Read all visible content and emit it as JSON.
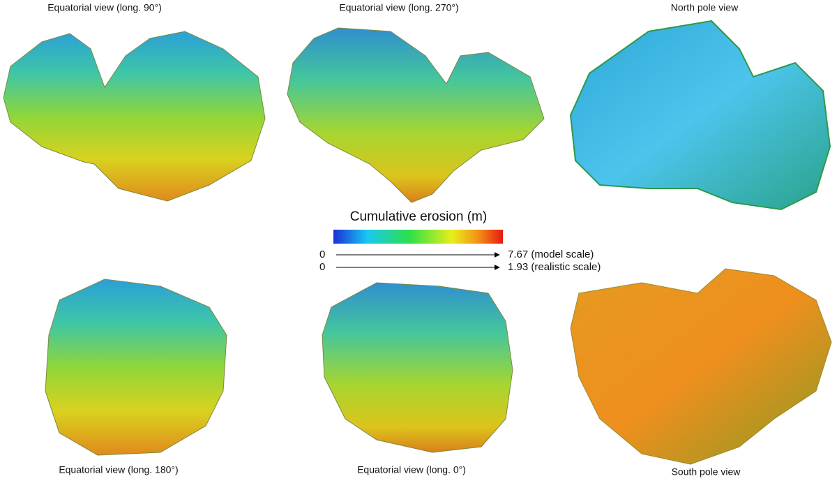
{
  "views": [
    {
      "label": "Equatorial view (long. 90°)"
    },
    {
      "label": "Equatorial view (long. 270°)"
    },
    {
      "label": "North pole view"
    },
    {
      "label": "Equatorial view (long. 180°)"
    },
    {
      "label": "Equatorial view (long. 0°)"
    },
    {
      "label": "South pole view"
    }
  ],
  "colorbar": {
    "title": "Cumulative erosion (m)",
    "scales": [
      {
        "min": "0",
        "max": "7.67 (model scale)"
      },
      {
        "min": "0",
        "max": "1.93 (realistic scale)"
      }
    ]
  }
}
